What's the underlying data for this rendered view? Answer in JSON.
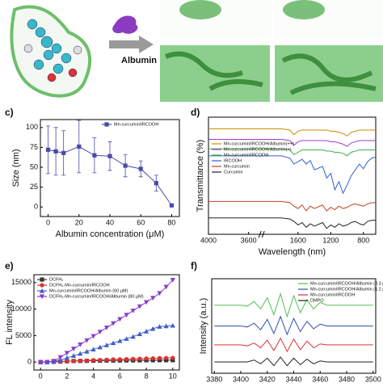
{
  "top": {
    "label": "Albumin"
  },
  "chart_data": [
    {
      "type": "line",
      "panel_label": "c)",
      "xlabel": "Albumin concentration (μM)",
      "ylabel": "Size (nm)",
      "x": [
        0,
        5,
        10,
        20,
        30,
        40,
        50,
        60,
        70,
        80
      ],
      "xlim": [
        -5,
        85
      ],
      "xticks": [
        0,
        20,
        40,
        60,
        80
      ],
      "ylim": [
        -12,
        110
      ],
      "yticks": [
        0,
        25,
        50,
        75,
        100
      ],
      "legend": "upper right",
      "series": [
        {
          "name": "Mn-curcumin/IRCOOH",
          "color": "#4a4aa8",
          "marker": "square",
          "values": [
            72,
            70,
            68,
            76,
            65,
            64,
            52,
            48,
            30,
            2
          ],
          "errors": [
            30,
            30,
            28,
            33,
            22,
            18,
            14,
            10,
            10,
            0
          ]
        }
      ]
    },
    {
      "type": "line",
      "panel_label": "d)",
      "xlabel": "Wavelength (nm)",
      "ylabel": "Transmittance (%)",
      "x": [
        4000,
        3800,
        3600,
        3500,
        2000,
        1800,
        1700,
        1650,
        1600,
        1550,
        1500,
        1450,
        1400,
        1300,
        1250,
        1200,
        1150,
        1100,
        1050,
        1000,
        950,
        900,
        850,
        800,
        750,
        700,
        650
      ],
      "xlim": [
        4000,
        650
      ],
      "xbreak": [
        3500,
        2000
      ],
      "xticks": [
        4000,
        3600,
        1600,
        1200,
        800
      ],
      "ylim": [
        0,
        100
      ],
      "legend": "lower left",
      "series": [
        {
          "name": "Mn-curcumin/IRCOOH/Albumin(++)",
          "color": "#d08a00",
          "values": [
            90,
            90,
            90,
            90,
            90,
            90,
            89,
            85,
            88,
            89,
            89,
            89,
            89,
            89,
            89,
            88,
            88,
            87,
            86,
            84,
            87,
            88,
            89,
            89,
            89,
            89,
            89
          ]
        },
        {
          "name": "Mn-curcumin/IRCOOH/Albumin(+)",
          "color": "#9b3fc0",
          "values": [
            81,
            81,
            81,
            81,
            81,
            81,
            80,
            76,
            79,
            80,
            80,
            80,
            80,
            80,
            80,
            79,
            79,
            78,
            77,
            75,
            78,
            79,
            80,
            80,
            80,
            80,
            80
          ]
        },
        {
          "name": "Mn-curcumin/IRCOOH",
          "color": "#3cb040",
          "values": [
            73,
            73,
            73,
            73,
            73,
            73,
            72,
            68,
            70,
            72,
            72,
            72,
            72,
            72,
            71,
            71,
            70,
            70,
            69,
            67,
            70,
            71,
            72,
            72,
            72,
            72,
            72
          ]
        },
        {
          "name": "IRCOOH",
          "color": "#3060d0",
          "values": [
            67,
            67,
            67,
            67,
            67,
            67,
            65,
            60,
            62,
            64,
            60,
            63,
            55,
            58,
            48,
            52,
            38,
            45,
            35,
            42,
            50,
            55,
            60,
            56,
            62,
            65,
            66
          ]
        },
        {
          "name": "Mn-curcumin",
          "color": "#c04020",
          "values": [
            28,
            28,
            28,
            28,
            28,
            28,
            27,
            24,
            22,
            25,
            20,
            24,
            22,
            25,
            20,
            23,
            21,
            24,
            22,
            23,
            25,
            26,
            25,
            24,
            26,
            27,
            27
          ]
        },
        {
          "name": "Curcumin",
          "color": "#222222",
          "values": [
            14,
            14,
            14,
            14,
            14,
            14,
            13,
            11,
            8,
            10,
            6,
            9,
            7,
            10,
            5,
            8,
            6,
            9,
            7,
            8,
            10,
            11,
            9,
            8,
            11,
            12,
            12
          ]
        }
      ]
    },
    {
      "type": "line",
      "panel_label": "e)",
      "ylabel": "FL intensity",
      "x": [
        0,
        0.5,
        1,
        1.5,
        2,
        2.5,
        3,
        3.5,
        4,
        4.5,
        5,
        5.5,
        6,
        6.5,
        7,
        7.5,
        8,
        8.5,
        9,
        9.5,
        10
      ],
      "xlim": [
        -0.5,
        10.5
      ],
      "xticks": [
        0,
        2,
        4,
        6,
        8,
        10
      ],
      "ylim": [
        -1500,
        16500
      ],
      "yticks": [
        0,
        5000,
        10000,
        15000
      ],
      "legend": "upper left",
      "series": [
        {
          "name": "DCFH₂",
          "color": "#333333",
          "marker": "square",
          "values": [
            0,
            0,
            50,
            100,
            150,
            200,
            220,
            240,
            260,
            280,
            300,
            300,
            310,
            320,
            330,
            340,
            350,
            350,
            360,
            360,
            370
          ]
        },
        {
          "name": "DCFH₂-Mn-curcumin/IRCOOH",
          "color": "#e03030",
          "marker": "circle",
          "values": [
            0,
            0,
            50,
            100,
            150,
            200,
            250,
            300,
            350,
            400,
            450,
            500,
            520,
            560,
            600,
            640,
            680,
            720,
            750,
            780,
            800
          ]
        },
        {
          "name": "Mn-curcumin/IRCOOH/Albumin (60 μM)",
          "color": "#4060c8",
          "marker": "triangle",
          "values": [
            0,
            0,
            100,
            400,
            800,
            1200,
            1600,
            2000,
            2400,
            2800,
            3200,
            3600,
            4000,
            4400,
            4800,
            5300,
            5800,
            6300,
            6700,
            6800,
            6900
          ]
        },
        {
          "name": "DCFH₂-Mn-curcumin/IRCOOH/Albumin (80 μM)",
          "color": "#8a3cc8",
          "marker": "triangle-down",
          "values": [
            0,
            0,
            200,
            900,
            1700,
            2500,
            3300,
            4100,
            4900,
            5700,
            6500,
            7300,
            8100,
            8900,
            9700,
            10500,
            11300,
            12100,
            13000,
            14200,
            15500
          ]
        }
      ]
    },
    {
      "type": "line",
      "panel_label": "f)",
      "ylabel": "Intensity (a.u.)",
      "x": [
        3380,
        3385,
        3390,
        3395,
        3400,
        3405,
        3410,
        3415,
        3420,
        3425,
        3430,
        3435,
        3440,
        3445,
        3450,
        3455,
        3460,
        3465,
        3470,
        3475,
        3480,
        3485,
        3490,
        3495,
        3500
      ],
      "xlim": [
        3378,
        3502
      ],
      "xticks": [
        3380,
        3400,
        3420,
        3440,
        3460,
        3480,
        3500
      ],
      "ylim": [
        0,
        100
      ],
      "legend": "upper right",
      "series": [
        {
          "name": "Mn-curcumin/IRCOOH/Albumin (0.3 μM)",
          "color": "#50c050",
          "values": [
            72,
            72,
            72,
            72,
            72,
            71,
            76,
            68,
            80,
            62,
            84,
            60,
            82,
            64,
            78,
            68,
            75,
            72,
            72,
            72,
            72,
            72,
            72,
            72,
            72
          ]
        },
        {
          "name": "Mn-curcumin/IRCOOH/Albumin (1.2 μM)",
          "color": "#3050b0",
          "values": [
            50,
            50,
            50,
            50,
            50,
            49,
            53,
            46,
            57,
            42,
            60,
            41,
            58,
            44,
            55,
            47,
            52,
            50,
            50,
            50,
            50,
            50,
            50,
            50,
            50
          ]
        },
        {
          "name": "Mn-curcumin/IRCOOH",
          "color": "#e03030",
          "values": [
            30,
            30,
            30,
            30,
            30,
            29,
            32,
            27,
            35,
            24,
            37,
            23,
            36,
            25,
            34,
            27,
            31,
            30,
            30,
            30,
            30,
            30,
            30,
            30,
            30
          ]
        },
        {
          "name": "DMPO",
          "color": "#222222",
          "values": [
            12,
            12,
            12,
            12,
            12,
            12,
            14,
            10,
            16,
            8,
            17,
            8,
            16,
            9,
            15,
            10,
            13,
            12,
            12,
            12,
            12,
            12,
            12,
            12,
            12
          ]
        }
      ]
    }
  ]
}
